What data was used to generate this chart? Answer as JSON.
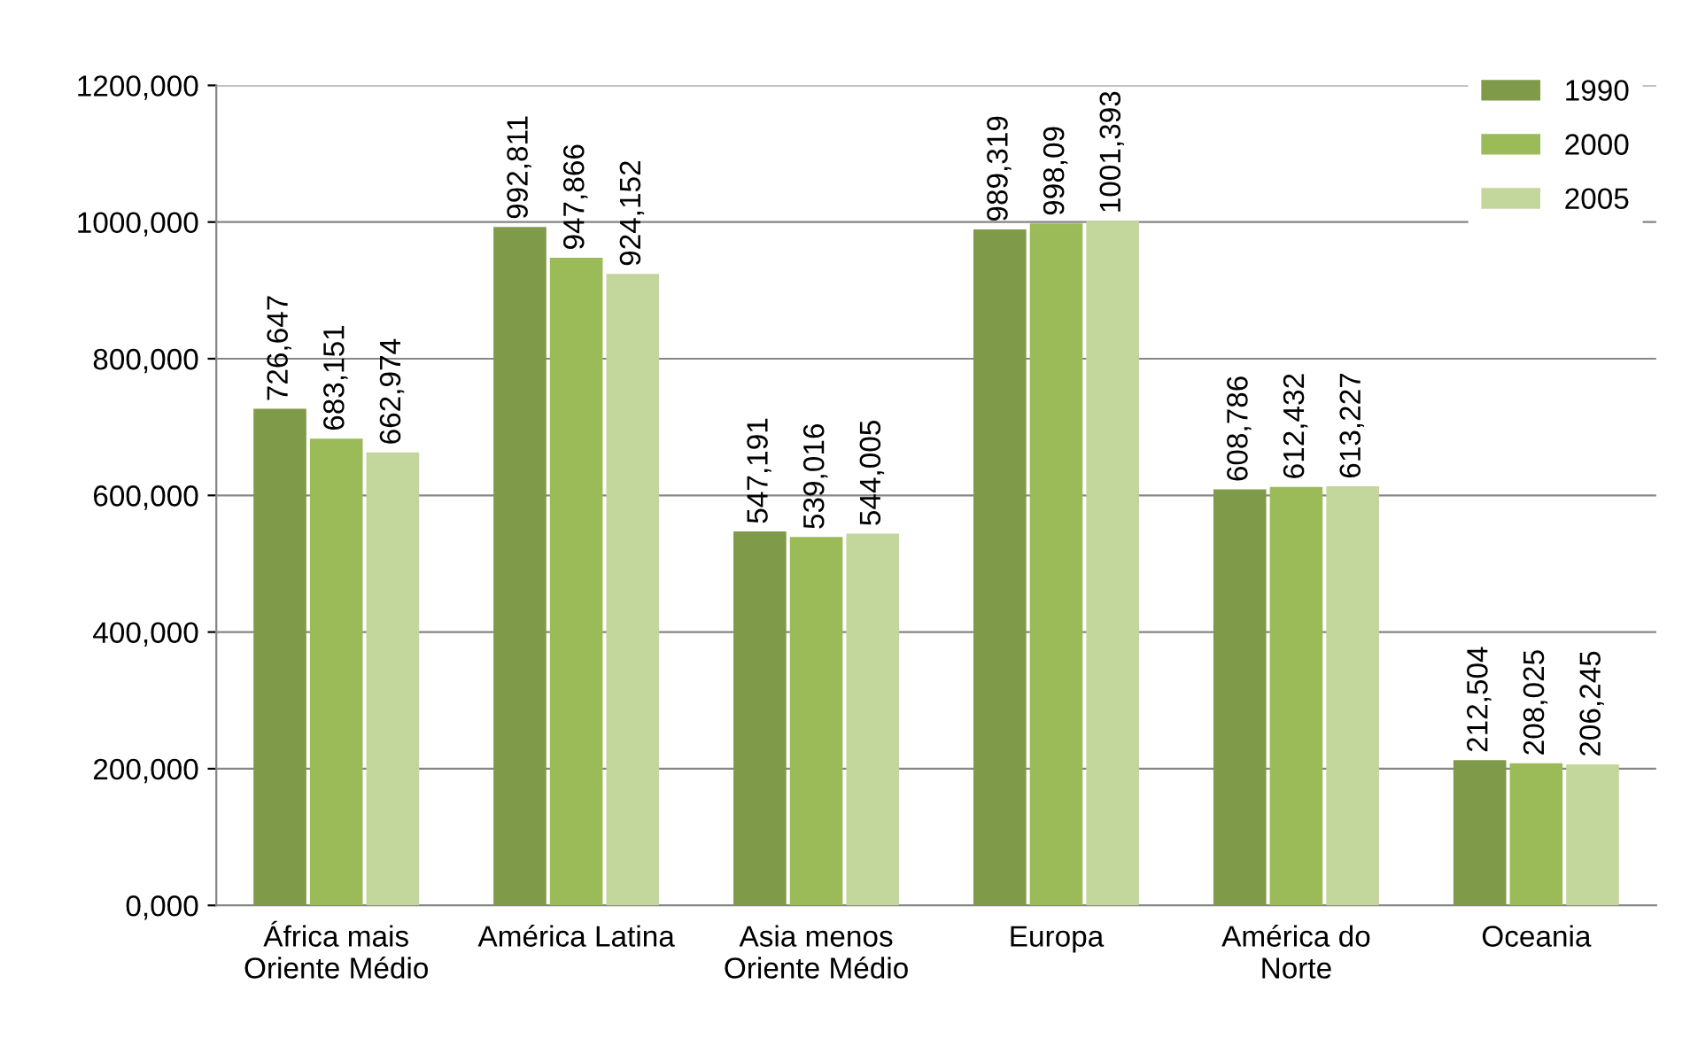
{
  "chart_data": {
    "type": "bar",
    "categories": [
      "África mais\nOriente Médio",
      "América Latina",
      "Asia menos\nOriente Médio",
      "Europa",
      "América do\nNorte",
      "Oceania"
    ],
    "series": [
      {
        "name": "1990",
        "color": "#7f9a48",
        "values": [
          726.647,
          992.811,
          547.191,
          989.319,
          608.786,
          212.504
        ],
        "value_labels": [
          "726,647",
          "992,811",
          "547,191",
          "989,319",
          "608,786",
          "212,504"
        ]
      },
      {
        "name": "2000",
        "color": "#9bbb59",
        "values": [
          683.151,
          947.866,
          539.016,
          998.09,
          612.432,
          208.025
        ],
        "value_labels": [
          "683,151",
          "947,866",
          "539,016",
          "998,09",
          "612,432",
          "208,025"
        ]
      },
      {
        "name": "2005",
        "color": "#c3d69b",
        "values": [
          662.974,
          924.152,
          544.005,
          1001.393,
          613.227,
          206.245
        ],
        "value_labels": [
          "662,974",
          "924,152",
          "544,005",
          "1001,393",
          "613,227",
          "206,245"
        ]
      }
    ],
    "ylim": [
      0,
      1200
    ],
    "yticks": [
      {
        "value": 0,
        "label": "0,000"
      },
      {
        "value": 200,
        "label": "200,000"
      },
      {
        "value": 400,
        "label": "400,000"
      },
      {
        "value": 600,
        "label": "600,000"
      },
      {
        "value": 800,
        "label": "800,000"
      },
      {
        "value": 1000,
        "label": "1000,000"
      },
      {
        "value": 1200,
        "label": "1200,000"
      }
    ],
    "grid": "y",
    "legend": "top right"
  }
}
